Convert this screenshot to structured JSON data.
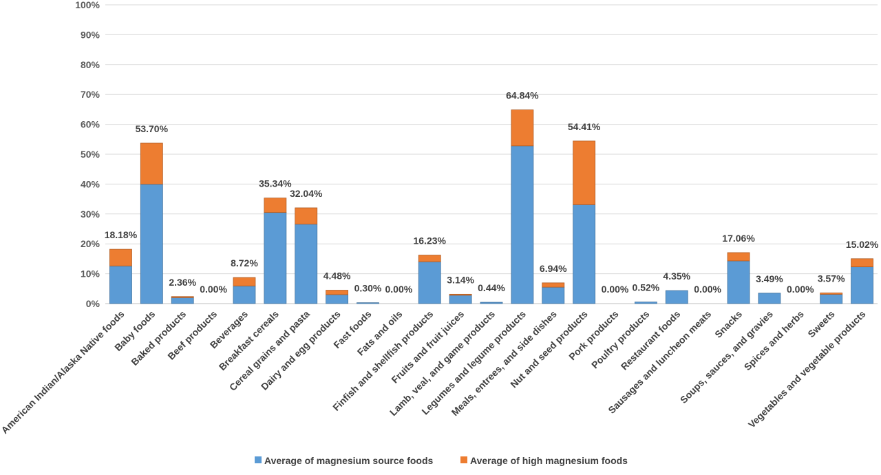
{
  "chart_data": {
    "type": "bar",
    "stacked": true,
    "title": "",
    "xlabel": "",
    "ylabel": "",
    "ylim": [
      0,
      100
    ],
    "yticks": [
      "0%",
      "10%",
      "20%",
      "30%",
      "40%",
      "50%",
      "60%",
      "70%",
      "80%",
      "90%",
      "100%"
    ],
    "grid": true,
    "legend_position": "bottom",
    "categories": [
      "American Indian/Alaska Native foods",
      "Baby foods",
      "Baked products",
      "Beef products",
      "Beverages",
      "Breakfast cereals",
      "Cereal grains and pasta",
      "Dairy and egg products",
      "Fast foods",
      "Fats and oils",
      "Finfish and shellfish products",
      "Fruits and fruit juices",
      "Lamb, veal, and game products",
      "Legumes and legume products",
      "Meals, entrees, and side dishes",
      "Nut and seed products",
      "Pork products",
      "Poultry products",
      "Restaurant foods",
      "Sausages and luncheon meats",
      "Snacks",
      "Soups, sauces, and gravies",
      "Spices and herbs",
      "Sweets",
      "Vegetables and vegetable products"
    ],
    "series": [
      {
        "name": "Average of magnesium source foods",
        "color": "#5B9BD5",
        "values": [
          12.6,
          40.0,
          2.0,
          0.0,
          5.9,
          30.5,
          26.6,
          3.0,
          0.3,
          0.0,
          14.0,
          2.8,
          0.44,
          52.8,
          5.5,
          33.1,
          0.0,
          0.52,
          4.35,
          0.0,
          14.3,
          3.49,
          0.0,
          3.1,
          12.3
        ]
      },
      {
        "name": "Average of high magnesium foods",
        "color": "#ED7D31",
        "values": [
          5.58,
          13.7,
          0.36,
          0.0,
          2.82,
          4.84,
          5.44,
          1.48,
          0.0,
          0.0,
          2.23,
          0.34,
          0.0,
          12.04,
          1.44,
          21.31,
          0.0,
          0.0,
          0.0,
          0.0,
          2.76,
          0.0,
          0.0,
          0.47,
          2.72
        ]
      }
    ],
    "totals_labels": [
      "18.18%",
      "53.70%",
      "2.36%",
      "0.00%",
      "8.72%",
      "35.34%",
      "32.04%",
      "4.48%",
      "0.30%",
      "0.00%",
      "16.23%",
      "3.14%",
      "0.44%",
      "64.84%",
      "6.94%",
      "54.41%",
      "0.00%",
      "0.52%",
      "4.35%",
      "0.00%",
      "17.06%",
      "3.49%",
      "0.00%",
      "3.57%",
      "15.02%"
    ]
  }
}
